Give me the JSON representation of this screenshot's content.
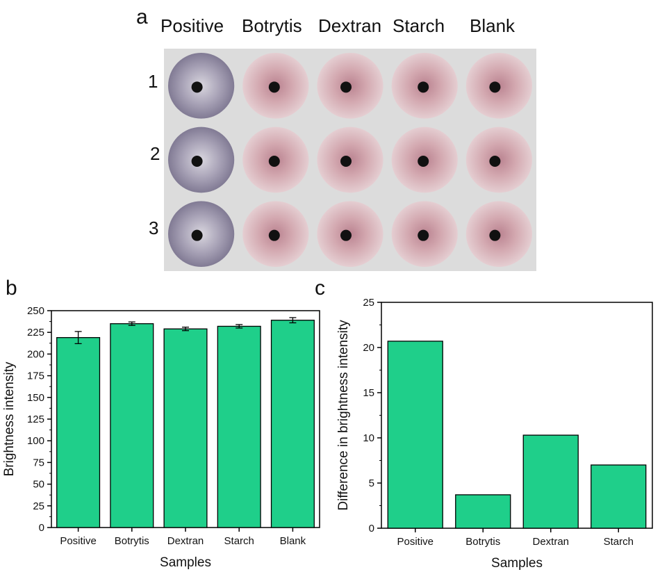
{
  "panel_a": {
    "letter": "a",
    "columns": [
      "Positive",
      "Botrytis",
      "Dextran",
      "Starch",
      "Blank"
    ],
    "rows": [
      "1",
      "2",
      "3"
    ],
    "colors": {
      "positive_well": "#8d87a0",
      "sample_well": "#c99aa2",
      "background": "#dcdcdc"
    }
  },
  "chart_data": [
    {
      "type": "bar",
      "panel": "b",
      "categories": [
        "Positive",
        "Botrytis",
        "Dextran",
        "Starch",
        "Blank"
      ],
      "values": [
        219,
        235,
        229,
        232,
        239
      ],
      "errors": [
        7,
        2,
        2,
        2,
        3
      ],
      "xlabel": "Samples",
      "ylabel": "Brightness intensity",
      "ylim": [
        0,
        250
      ],
      "yticks": [
        "0",
        "25",
        "50",
        "75",
        "100",
        "125",
        "150",
        "175",
        "200",
        "225",
        "250"
      ],
      "bar_color": "#1fcf8a",
      "grid": false,
      "legend": "none"
    },
    {
      "type": "bar",
      "panel": "c",
      "categories": [
        "Positive",
        "Botrytis",
        "Dextran",
        "Starch"
      ],
      "values": [
        20.7,
        3.7,
        10.3,
        7
      ],
      "xlabel": "Samples",
      "ylabel": "Difference in brightness intensity",
      "ylim": [
        0,
        25
      ],
      "yticks": [
        "0",
        "5",
        "10",
        "15",
        "20",
        "25"
      ],
      "bar_color": "#1fcf8a",
      "grid": false,
      "legend": "none"
    }
  ],
  "panel_b": {
    "letter": "b"
  },
  "panel_c": {
    "letter": "c"
  }
}
